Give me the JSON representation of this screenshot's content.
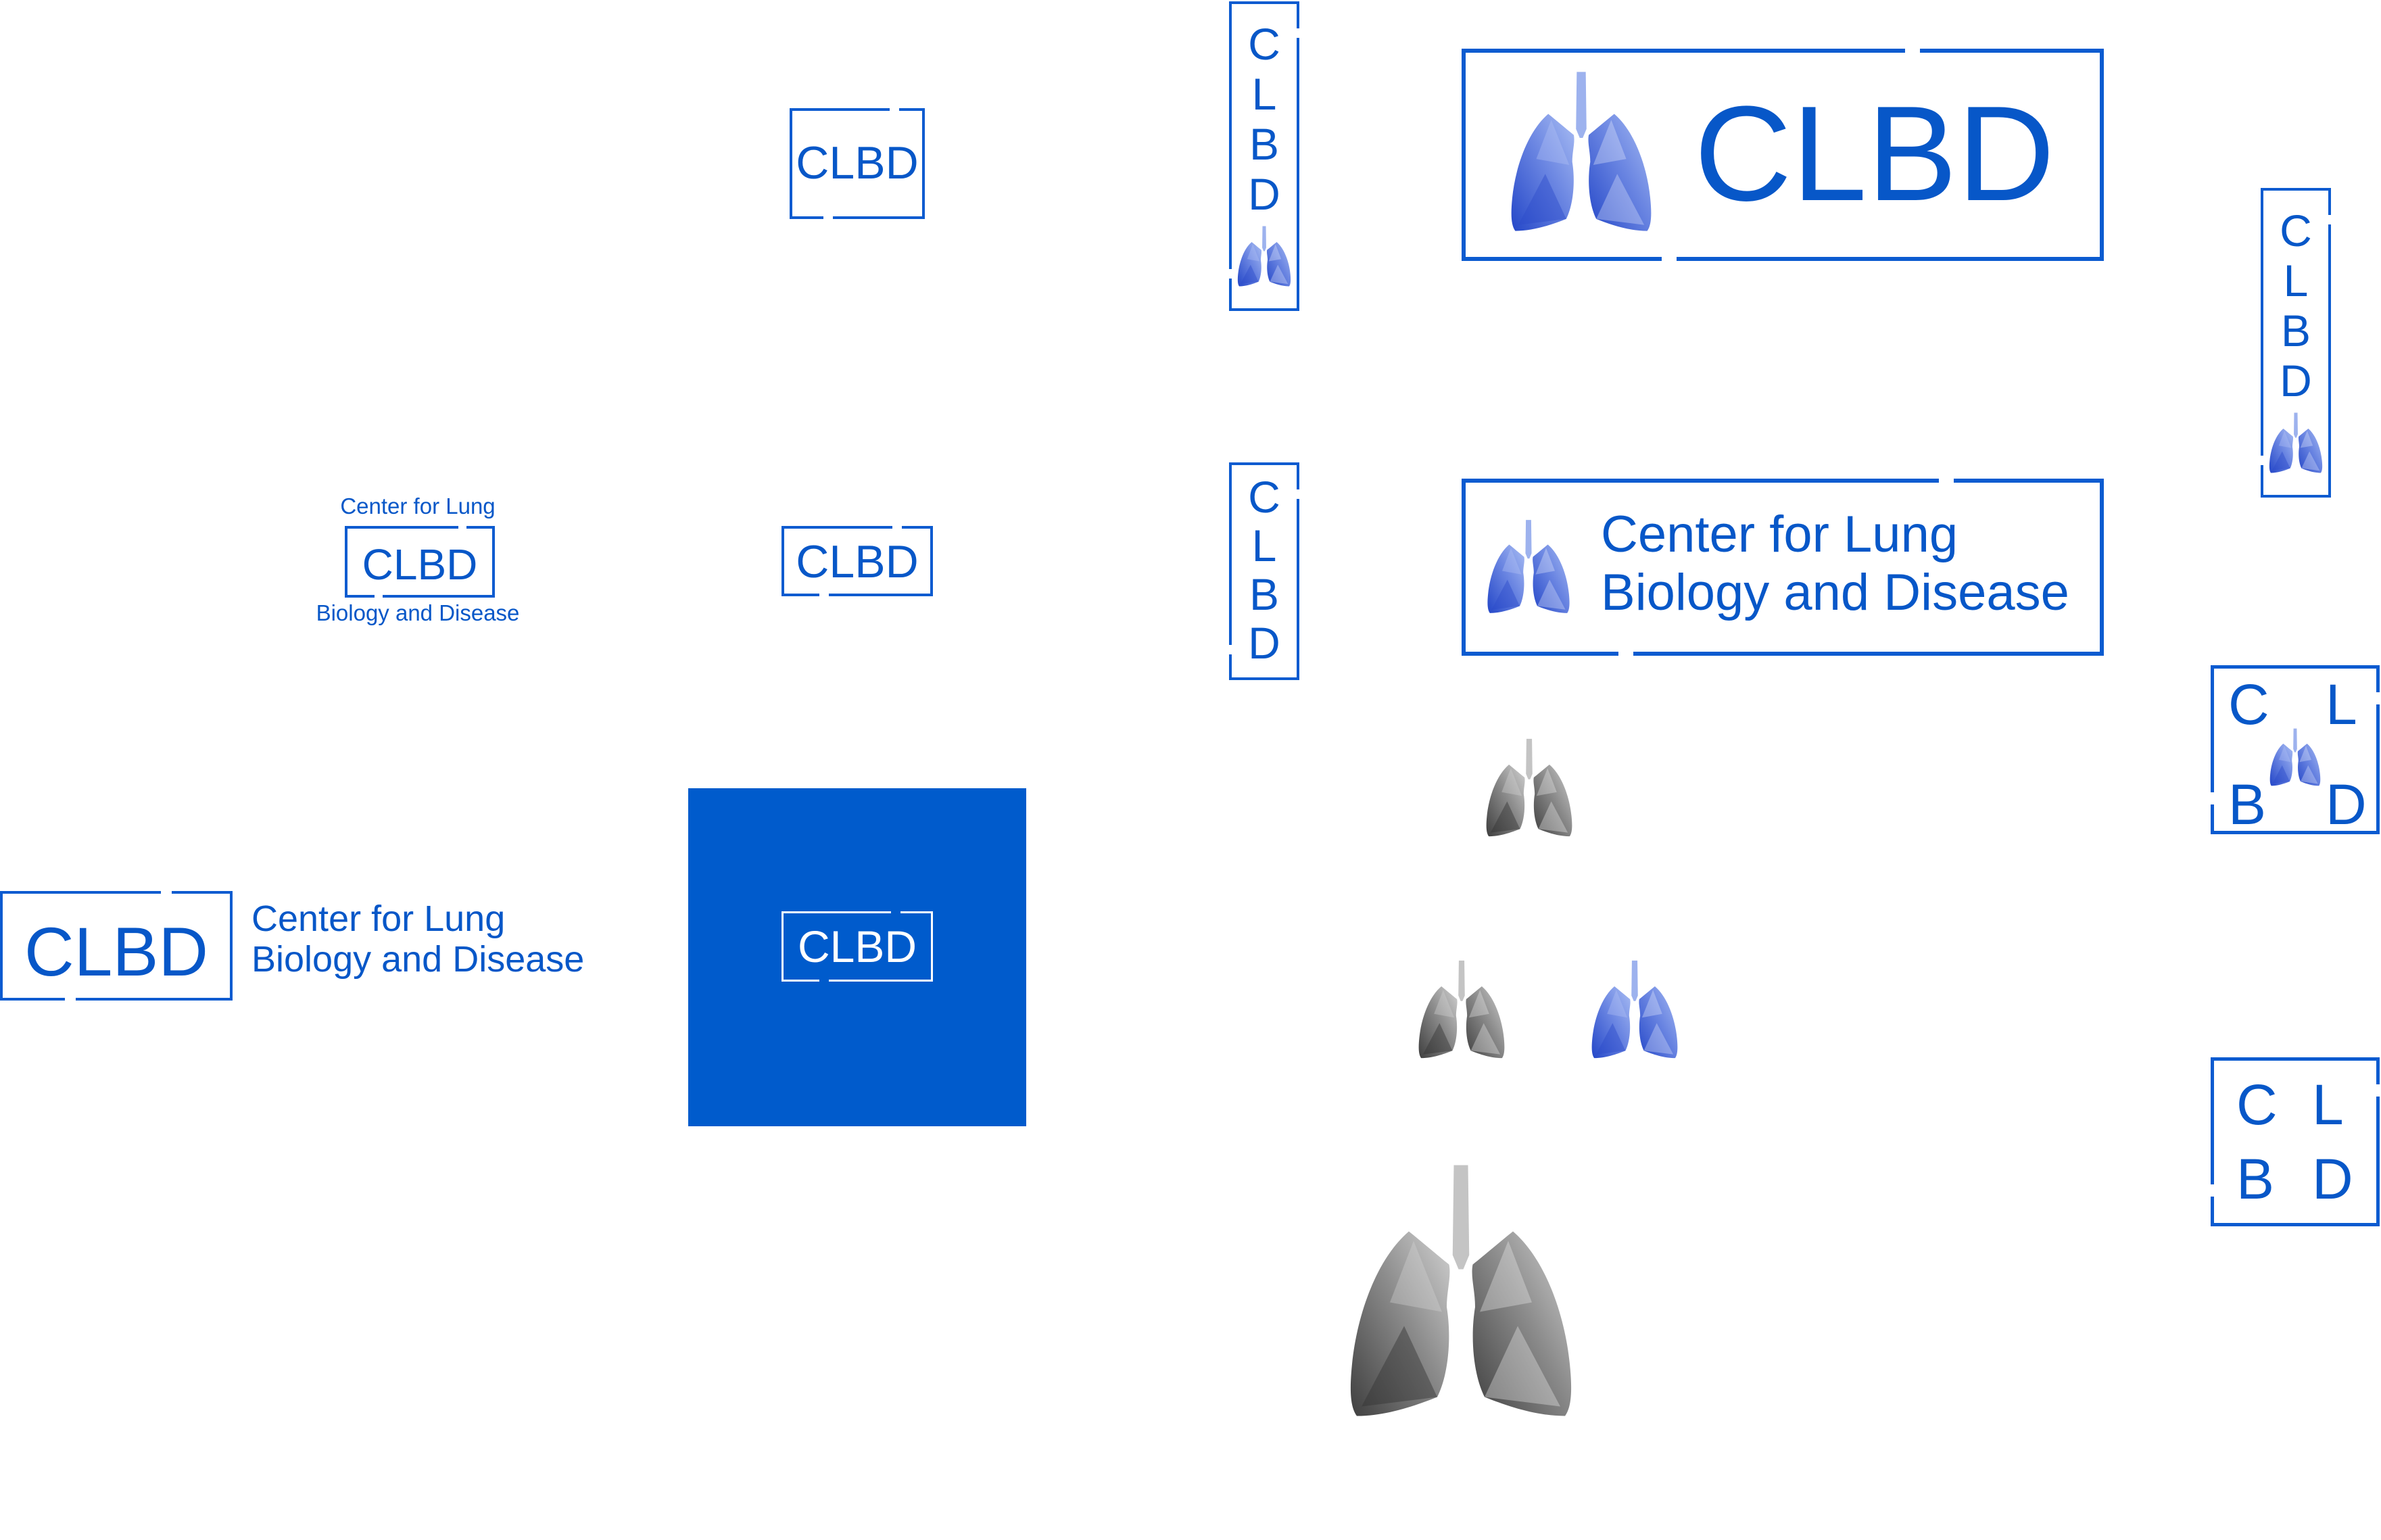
{
  "brand": {
    "short": "CLBD",
    "line1": "Center for Lung",
    "line2": "Biology and Disease",
    "letters": [
      "C",
      "L",
      "B",
      "D"
    ]
  },
  "colors": {
    "brand_blue": "#0b5bd0",
    "text_blue": "#0757c8",
    "tile_blue": "#005bcc",
    "lung_blue_light": "#8fa8ec",
    "lung_blue_dark": "#3354d2",
    "lung_gray_light": "#c9c9c9",
    "lung_gray_dark": "#4a4a4a",
    "background": "#ffffff"
  },
  "icons": [
    "lung-icon-blue",
    "lung-icon-gray"
  ]
}
